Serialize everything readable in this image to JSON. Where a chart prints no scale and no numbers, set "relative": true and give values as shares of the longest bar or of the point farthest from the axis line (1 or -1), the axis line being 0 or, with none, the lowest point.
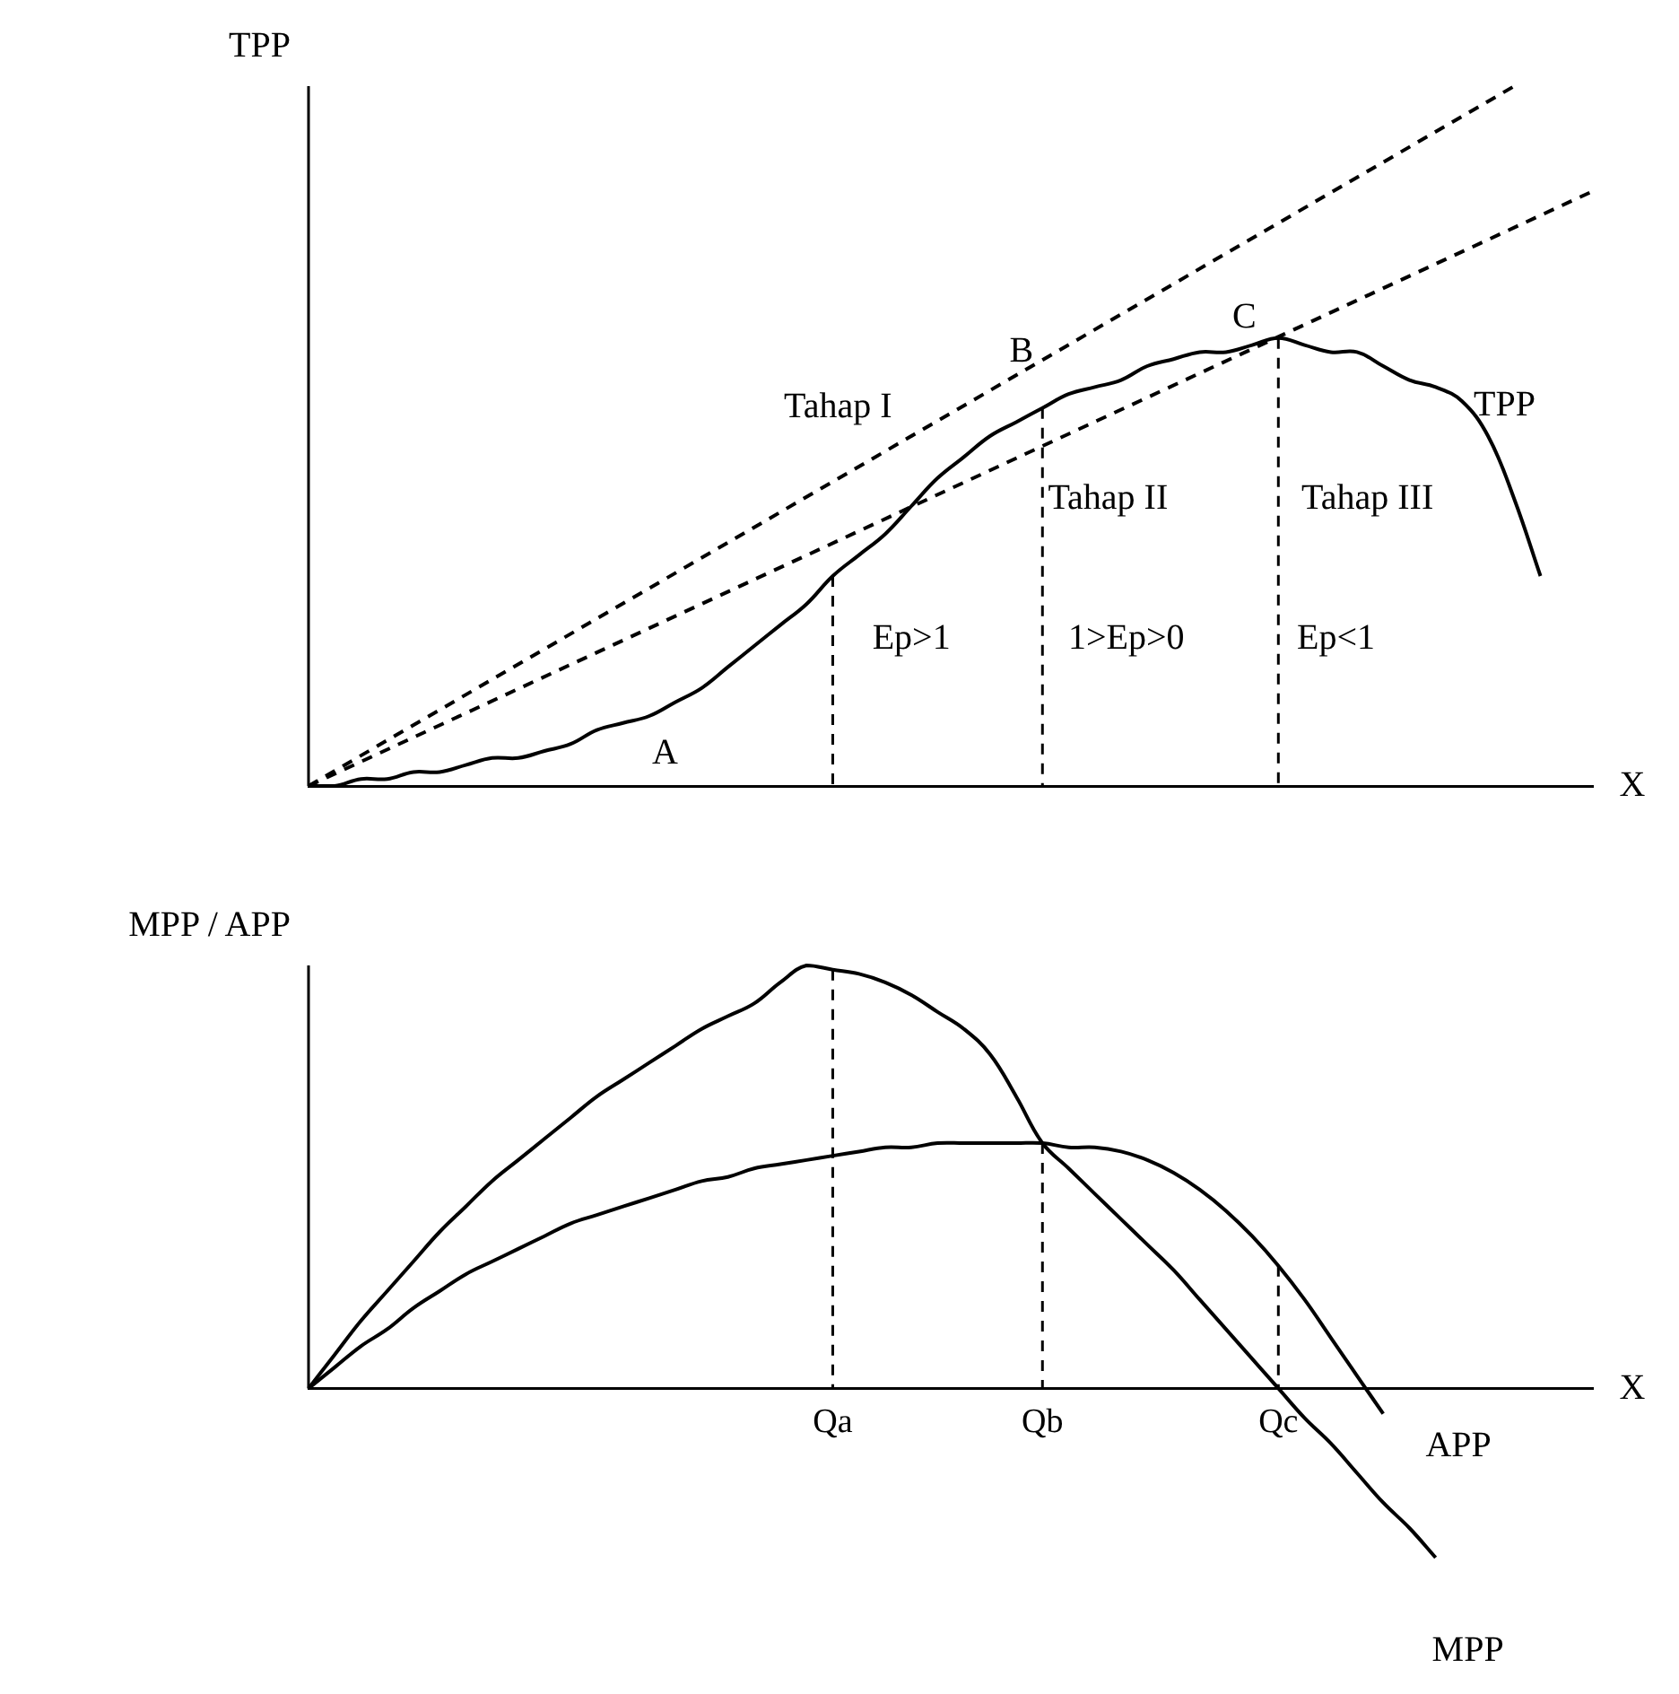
{
  "chart_data": [
    {
      "type": "line",
      "relative": true,
      "tick_labels": false,
      "ylabel": "TPP",
      "xlabel": "X",
      "categories": [
        null,
        null,
        null,
        null,
        null,
        null,
        null,
        null,
        null,
        null,
        null,
        null,
        null,
        null,
        null,
        null,
        null,
        null,
        null,
        null,
        "Qa",
        null,
        null,
        null,
        null,
        null,
        null,
        null,
        "Qb",
        null,
        null,
        null,
        null,
        null,
        null,
        null,
        null,
        "Qc",
        null,
        null,
        null,
        null,
        null,
        null,
        null,
        null,
        null,
        null,
        null,
        null
      ],
      "series": [
        {
          "name": "TPP",
          "color": "#000000",
          "values": [
            0,
            0,
            0.01,
            0.01,
            0.02,
            0.02,
            0.03,
            0.04,
            0.04,
            0.05,
            0.06,
            0.08,
            0.09,
            0.1,
            0.12,
            0.14,
            0.17,
            0.2,
            0.23,
            0.26,
            0.3,
            0.33,
            0.36,
            0.4,
            0.44,
            0.47,
            0.5,
            0.52,
            0.54,
            0.56,
            0.57,
            0.58,
            0.6,
            0.61,
            0.62,
            0.62,
            0.63,
            0.64,
            0.63,
            0.62,
            0.62,
            0.6,
            0.58,
            0.57,
            0.55,
            0.5,
            0.41,
            0.3,
            null,
            null
          ]
        },
        {
          "color": "#000000",
          "line_style": "dashed",
          "values": [
            0,
            null,
            null,
            null,
            null,
            null,
            null,
            null,
            null,
            null,
            null,
            null,
            null,
            null,
            null,
            null,
            null,
            null,
            null,
            null,
            null,
            null,
            null,
            null,
            null,
            null,
            null,
            null,
            null,
            null,
            null,
            null,
            null,
            null,
            null,
            null,
            null,
            null,
            null,
            null,
            null,
            null,
            null,
            null,
            null,
            null,
            1,
            null,
            null,
            null
          ]
        },
        {
          "color": "#000000",
          "line_style": "dashed",
          "values": [
            0,
            null,
            null,
            null,
            null,
            null,
            null,
            null,
            null,
            null,
            null,
            null,
            null,
            null,
            null,
            null,
            null,
            null,
            null,
            null,
            null,
            null,
            null,
            null,
            null,
            null,
            null,
            null,
            null,
            null,
            null,
            null,
            null,
            null,
            null,
            null,
            null,
            null,
            null,
            null,
            null,
            null,
            null,
            null,
            null,
            null,
            null,
            null,
            null,
            0.85
          ]
        }
      ],
      "ref_lines": [
        {
          "axis": "x",
          "value": "Qa",
          "line_style": "dashed"
        },
        {
          "axis": "x",
          "value": "Qb",
          "line_style": "dashed"
        },
        {
          "axis": "x",
          "value": "Qc",
          "line_style": "dashed"
        }
      ],
      "annotations": [
        "A",
        "B",
        "C",
        "Tahap I",
        "Tahap II",
        "Tahap III",
        "Ep>1",
        "1>Ep>0",
        "Ep<1"
      ]
    },
    {
      "type": "line",
      "relative": true,
      "tick_labels": "x",
      "ylabel": "MPP / APP",
      "xlabel": "X",
      "categories": [
        null,
        null,
        null,
        null,
        null,
        null,
        null,
        null,
        null,
        null,
        null,
        null,
        null,
        null,
        null,
        null,
        null,
        null,
        null,
        null,
        "Qa",
        null,
        null,
        null,
        null,
        null,
        null,
        null,
        "Qb",
        null,
        null,
        null,
        null,
        null,
        null,
        null,
        null,
        "Qc",
        null,
        null,
        null,
        null,
        null,
        null,
        null,
        null,
        null,
        null,
        null,
        null
      ],
      "series": [
        {
          "name": "APP",
          "color": "#000000",
          "values": [
            0,
            0.05,
            0.1,
            0.14,
            0.19,
            0.23,
            0.27,
            0.3,
            0.33,
            0.36,
            0.39,
            0.41,
            0.43,
            0.45,
            0.47,
            0.49,
            0.5,
            0.52,
            0.53,
            0.54,
            0.55,
            0.56,
            0.57,
            0.57,
            0.58,
            0.58,
            0.58,
            0.58,
            0.58,
            0.57,
            0.57,
            0.56,
            0.54,
            0.51,
            0.47,
            0.42,
            0.36,
            0.29,
            0.21,
            0.12,
            0.03,
            -0.06,
            null,
            null,
            null,
            null,
            null,
            null,
            null,
            null
          ]
        },
        {
          "name": "MPP",
          "color": "#000000",
          "values": [
            0,
            0.08,
            0.16,
            0.23,
            0.3,
            0.37,
            0.43,
            0.49,
            0.54,
            0.59,
            0.64,
            0.69,
            0.73,
            0.77,
            0.81,
            0.85,
            0.88,
            0.91,
            0.96,
            1,
            0.99,
            0.98,
            0.96,
            0.93,
            0.89,
            0.85,
            0.79,
            0.69,
            0.58,
            0.52,
            0.46,
            0.4,
            0.34,
            0.28,
            0.21,
            0.14,
            0.07,
            0,
            -0.07,
            -0.13,
            -0.2,
            -0.27,
            -0.33,
            -0.4,
            null,
            null,
            null,
            null,
            null,
            null
          ]
        }
      ],
      "ref_lines": [
        {
          "axis": "x",
          "value": "Qa",
          "line_style": "dashed"
        },
        {
          "axis": "x",
          "value": "Qb",
          "line_style": "dashed"
        },
        {
          "axis": "x",
          "value": "Qc",
          "line_style": "dashed"
        }
      ]
    }
  ]
}
